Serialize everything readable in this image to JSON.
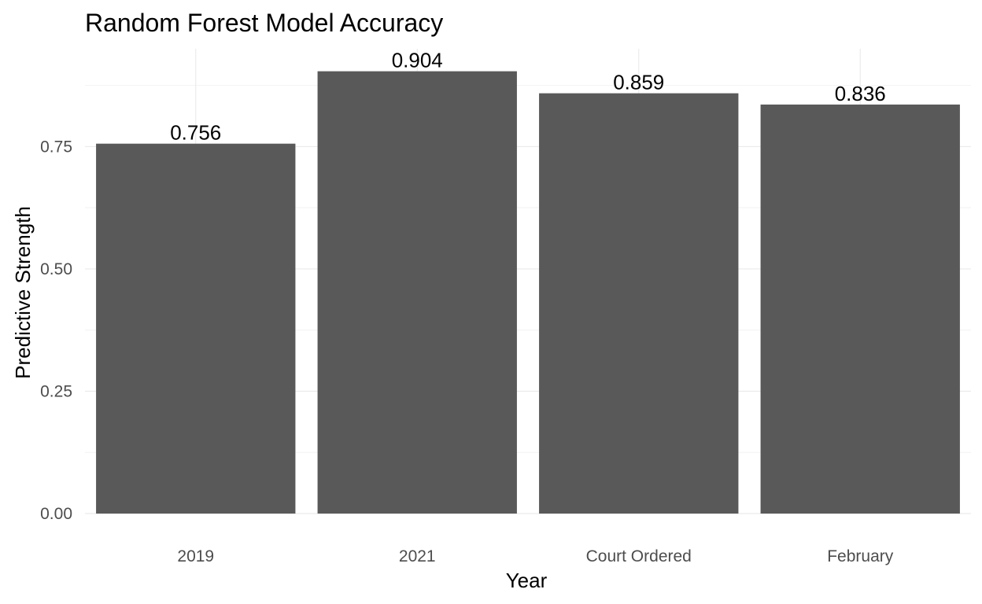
{
  "chart_data": {
    "type": "bar",
    "title": "Random Forest Model Accuracy",
    "xlabel": "Year",
    "ylabel": "Predictive Strength",
    "categories": [
      "2019",
      "2021",
      "Court Ordered",
      "February"
    ],
    "values": [
      0.756,
      0.904,
      0.859,
      0.836
    ],
    "data_labels": [
      "0.756",
      "0.904",
      "0.859",
      "0.836"
    ],
    "ylim": [
      0,
      0.95
    ],
    "yticks": [
      0,
      0.25,
      0.5,
      0.75
    ],
    "ytick_labels": [
      "0.00",
      "0.25",
      "0.50",
      "0.75"
    ],
    "grid": true,
    "legend": "none",
    "bar_color": "#595959"
  }
}
